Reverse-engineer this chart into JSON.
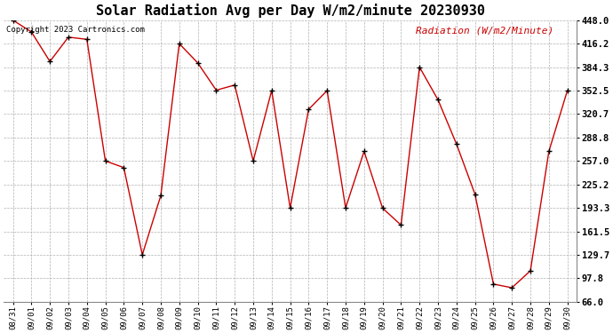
{
  "title": "Solar Radiation Avg per Day W/m2/minute 20230930",
  "copyright": "Copyright 2023 Cartronics.com",
  "legend_label": "Radiation (W/m2/Minute)",
  "dates": [
    "08/31",
    "09/01",
    "09/02",
    "09/03",
    "09/04",
    "09/05",
    "09/06",
    "09/07",
    "09/08",
    "09/09",
    "09/10",
    "09/11",
    "09/12",
    "09/13",
    "09/14",
    "09/15",
    "09/16",
    "09/17",
    "09/18",
    "09/19",
    "09/20",
    "09/21",
    "09/22",
    "09/23",
    "09/24",
    "09/25",
    "09/26",
    "09/27",
    "09/28",
    "09/29",
    "09/30"
  ],
  "values": [
    448.0,
    432.0,
    392.0,
    425.0,
    422.0,
    257.0,
    248.0,
    129.7,
    210.0,
    416.2,
    390.0,
    353.0,
    360.0,
    257.0,
    352.5,
    193.3,
    327.0,
    352.5,
    193.3,
    270.0,
    193.0,
    170.0,
    384.3,
    340.0,
    280.0,
    212.0,
    90.0,
    85.0,
    108.0,
    270.0,
    352.5
  ],
  "line_color": "#cc0000",
  "marker_color": "#000000",
  "bg_color": "#ffffff",
  "grid_color": "#b0b0b0",
  "title_fontsize": 11,
  "legend_color": "#cc0000",
  "copyright_color": "#000000",
  "ylim": [
    66.0,
    448.0
  ],
  "yticks": [
    66.0,
    97.8,
    129.7,
    161.5,
    193.3,
    225.2,
    257.0,
    288.8,
    320.7,
    352.5,
    384.3,
    416.2,
    448.0
  ]
}
